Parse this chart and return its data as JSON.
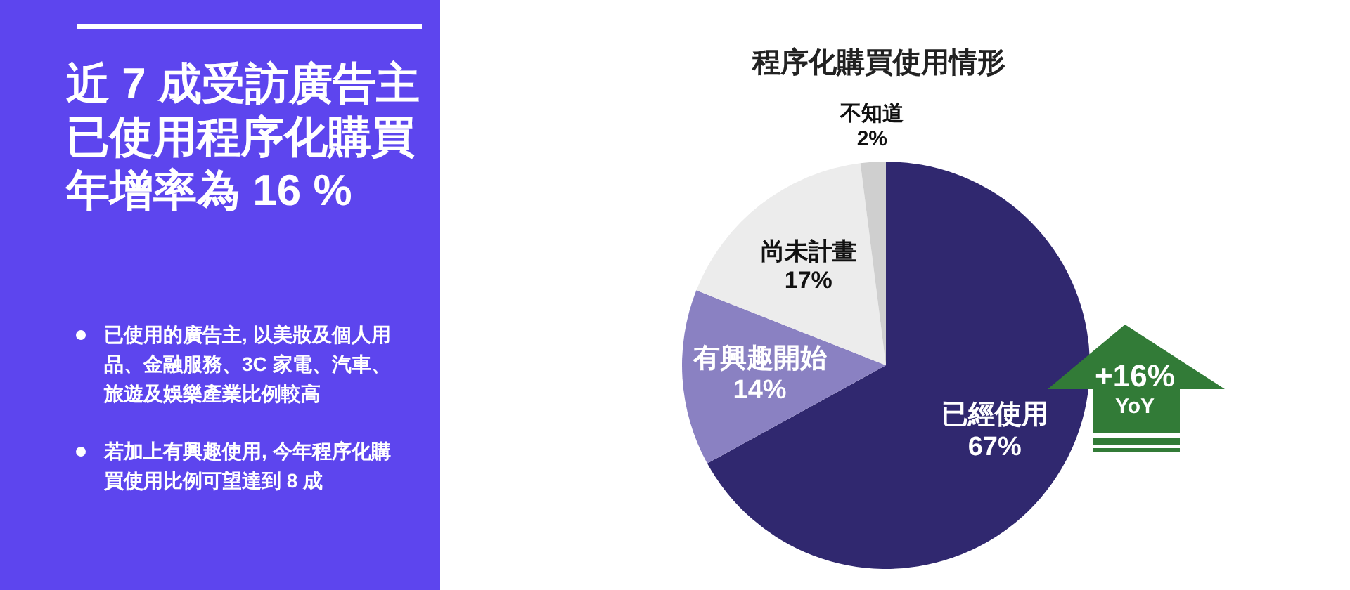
{
  "chart_data": [
    {
      "type": "other",
      "title": "近 7 成受訪廣告主已使用程序化購買年增率為 16 %",
      "annotations": [
        "已使用的廣告主, 以美妝及個人用品、金融服務、3C 家電、汽車、旅遊及娛樂產業比例較高",
        "若加上有興趣使用, 今年程序化購買使用比例可望達到 8 成"
      ]
    },
    {
      "type": "pie",
      "title": "程序化購買使用情形",
      "categories": [
        "已經使用",
        "有興趣開始",
        "尚未計畫",
        "不知道"
      ],
      "values": [
        67,
        14,
        17,
        2
      ],
      "colors": [
        "#30286f",
        "#8a81c2",
        "#ececec",
        "#cfcfcf"
      ],
      "value_labels": [
        "67%",
        "14%",
        "17%",
        "2%"
      ],
      "annotations": [
        "+16%",
        "YoY"
      ]
    }
  ]
}
